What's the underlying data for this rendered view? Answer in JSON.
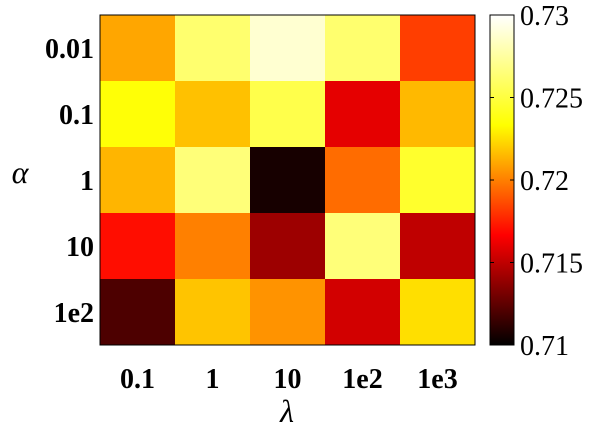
{
  "chart_data": {
    "type": "heatmap",
    "xlabel": "λ",
    "ylabel": "α",
    "x_categories": [
      "0.1",
      "1",
      "10",
      "1e2",
      "1e3"
    ],
    "y_categories": [
      "0.01",
      "0.1",
      "1",
      "10",
      "1e2"
    ],
    "values": [
      [
        0.721,
        0.7262,
        0.7288,
        0.7262,
        0.7183
      ],
      [
        0.7235,
        0.7217,
        0.7253,
        0.716,
        0.7215
      ],
      [
        0.7214,
        0.7265,
        0.7106,
        0.7195,
        0.7245
      ],
      [
        0.717,
        0.72,
        0.7141,
        0.7265,
        0.715
      ],
      [
        0.712,
        0.7218,
        0.7205,
        0.7155,
        0.7225
      ]
    ],
    "colormap": "hot",
    "clim": [
      0.71,
      0.73
    ],
    "colorbar_ticks": [
      "0.71",
      "0.715",
      "0.72",
      "0.725",
      "0.73"
    ],
    "colorbar_tick_values": [
      0.71,
      0.715,
      0.72,
      0.725,
      0.73
    ]
  }
}
